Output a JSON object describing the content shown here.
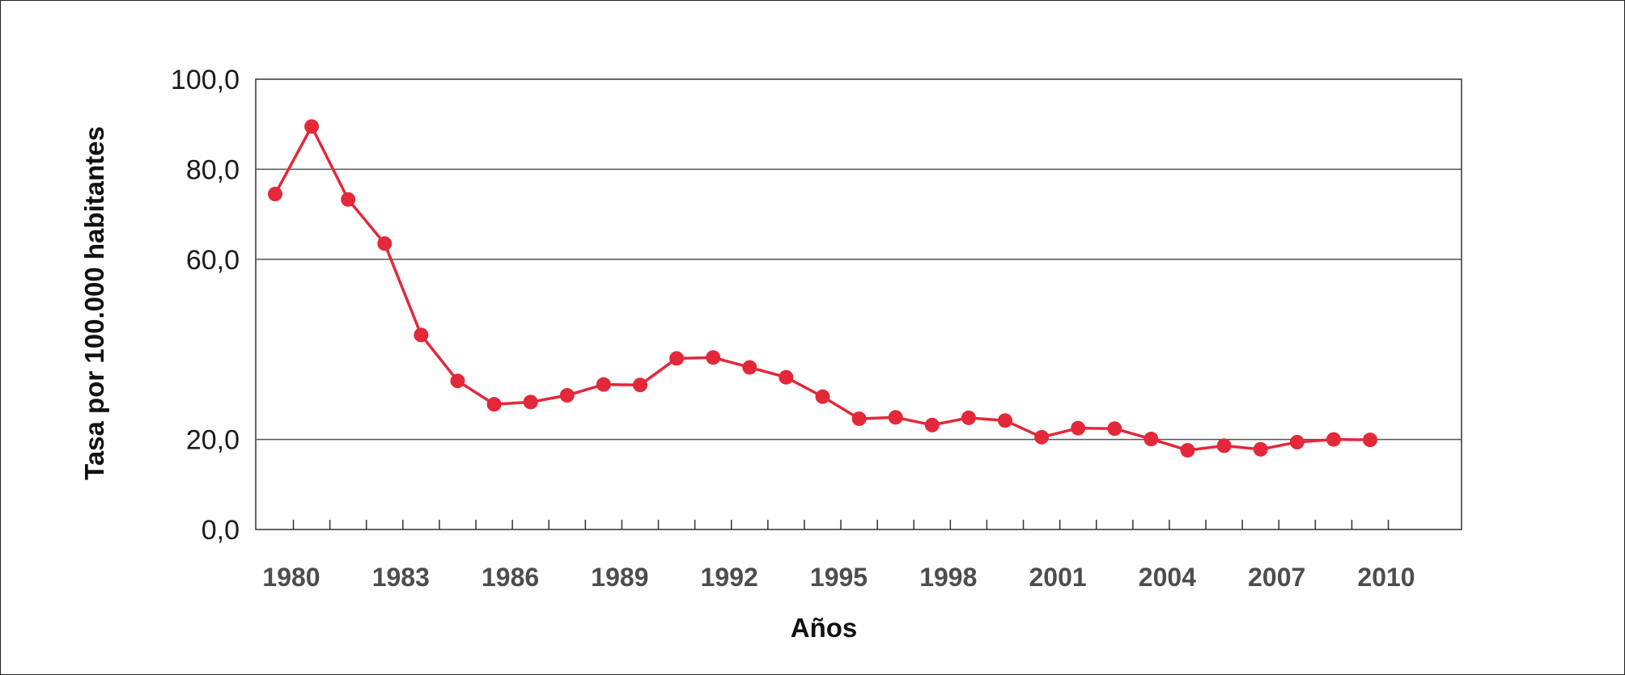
{
  "chart_data": {
    "type": "line",
    "title": "",
    "xlabel": "Años",
    "ylabel": "Tasa por 100.000 habitantes",
    "xlim": [
      1980,
      2010
    ],
    "ylim": [
      0,
      100
    ],
    "yticks": [
      "0,0",
      "20,0",
      "60,0",
      "80,0",
      "100,0"
    ],
    "ytick_values": [
      0,
      20,
      60,
      80,
      100
    ],
    "xticks": [
      "1980",
      "1983",
      "1986",
      "1989",
      "1992",
      "1995",
      "1998",
      "2001",
      "2004",
      "2007",
      "2010"
    ],
    "grid": true,
    "colors": {
      "line": "#e3283a",
      "grid": "#555555",
      "axis": "#333333"
    },
    "series": [
      {
        "x": [
          1980,
          1981,
          1982,
          1983,
          1984,
          1985,
          1986,
          1987,
          1988,
          1989,
          1990,
          1991,
          1992,
          1993,
          1994,
          1995,
          1996,
          1997,
          1998,
          1999,
          2000,
          2001,
          2002,
          2003,
          2004,
          2005,
          2006,
          2007,
          2008,
          2009,
          2010
        ],
        "values": [
          74.5,
          89.5,
          73.3,
          63.5,
          43.2,
          33.0,
          27.8,
          28.3,
          29.8,
          32.2,
          32.1,
          38.0,
          38.2,
          36.0,
          33.8,
          29.5,
          24.6,
          24.9,
          23.2,
          24.8,
          24.2,
          20.5,
          22.5,
          22.4,
          20.1,
          17.6,
          18.6,
          17.8,
          19.4,
          20.0,
          19.9
        ]
      }
    ]
  }
}
